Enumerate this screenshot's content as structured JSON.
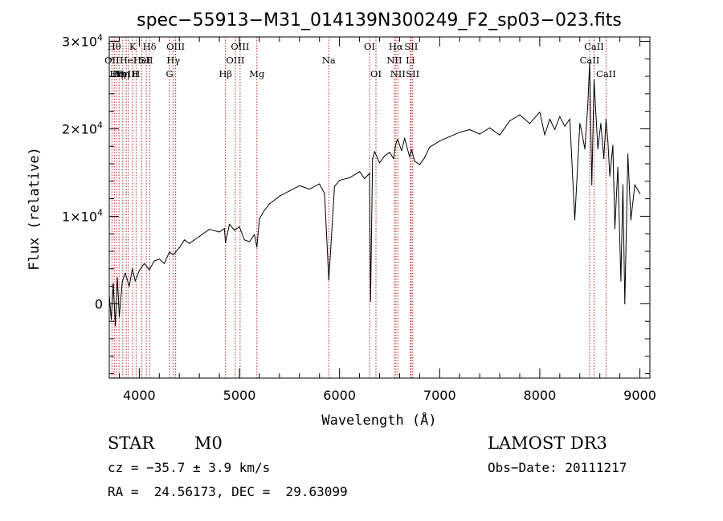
{
  "chart_data": {
    "type": "line",
    "title": "spec−55913−M31_014139N300249_F2_sp03−023.fits",
    "xlabel": "Wavelength (Å)",
    "ylabel": "Flux (relative)",
    "xlim": [
      3700,
      9100
    ],
    "ylim": [
      -8500,
      30500
    ],
    "x_ticks": [
      {
        "value": 4000,
        "label": "4000"
      },
      {
        "value": 5000,
        "label": "5000"
      },
      {
        "value": 6000,
        "label": "6000"
      },
      {
        "value": 7000,
        "label": "7000"
      },
      {
        "value": 8000,
        "label": "8000"
      },
      {
        "value": 9000,
        "label": "9000"
      }
    ],
    "y_ticks": [
      {
        "value": 0,
        "mantissa": "0",
        "exponent": ""
      },
      {
        "value": 10000,
        "mantissa": "1×10",
        "exponent": "4"
      },
      {
        "value": 20000,
        "mantissa": "2×10",
        "exponent": "4"
      },
      {
        "value": 30000,
        "mantissa": "3×10",
        "exponent": "4"
      }
    ],
    "series": [
      {
        "name": "spectrum",
        "x": [
          3700,
          3720,
          3740,
          3760,
          3780,
          3800,
          3830,
          3860,
          3900,
          3930,
          3960,
          4000,
          4050,
          4100,
          4150,
          4200,
          4250,
          4300,
          4340,
          4400,
          4450,
          4500,
          4600,
          4700,
          4800,
          4850,
          4861,
          4900,
          4950,
          5000,
          5050,
          5100,
          5150,
          5175,
          5200,
          5250,
          5300,
          5400,
          5500,
          5600,
          5700,
          5800,
          5850,
          5893,
          5950,
          6000,
          6100,
          6200,
          6250,
          6300,
          6310,
          6330,
          6350,
          6400,
          6450,
          6500,
          6540,
          6563,
          6580,
          6620,
          6650,
          6700,
          6720,
          6750,
          6800,
          6850,
          6900,
          7000,
          7100,
          7200,
          7300,
          7400,
          7500,
          7600,
          7700,
          7800,
          7900,
          8000,
          8050,
          8100,
          8150,
          8200,
          8250,
          8300,
          8350,
          8400,
          8420,
          8450,
          8480,
          8498,
          8520,
          8542,
          8580,
          8610,
          8640,
          8662,
          8680,
          8700,
          8730,
          8750,
          8780,
          8810,
          8830,
          8850,
          8880,
          8910,
          8950,
          9000
        ],
        "y": [
          1000,
          -1800,
          2300,
          -2500,
          3000,
          -1500,
          2500,
          3500,
          2000,
          4000,
          2600,
          3800,
          4600,
          3900,
          4900,
          5100,
          4600,
          5900,
          5600,
          6400,
          7300,
          6900,
          7700,
          8500,
          8200,
          8600,
          7000,
          9100,
          8400,
          8800,
          7300,
          7100,
          7900,
          6500,
          9700,
          10700,
          11400,
          12300,
          12900,
          13500,
          13100,
          13700,
          12600,
          2700,
          13400,
          14100,
          14400,
          15100,
          14300,
          14900,
          300,
          16600,
          17400,
          16100,
          16900,
          17300,
          16600,
          18300,
          18800,
          17500,
          18900,
          16800,
          17600,
          16300,
          15900,
          16700,
          17900,
          18600,
          19100,
          19600,
          19900,
          19400,
          20100,
          19300,
          20900,
          21600,
          20600,
          21900,
          19300,
          21100,
          19900,
          21400,
          20300,
          21100,
          9600,
          20600,
          19600,
          17700,
          22700,
          27600,
          13600,
          25600,
          17700,
          20600,
          16600,
          21100,
          18600,
          14600,
          18100,
          8600,
          15600,
          2600,
          13600,
          0,
          17100,
          9600,
          13600,
          12600
        ]
      }
    ],
    "lines": [
      {
        "x": 3727,
        "label": "OII",
        "row": 2
      },
      {
        "x": 3750,
        "label": "Hθ",
        "row": 1
      },
      {
        "x": 3771,
        "label": "Hη",
        "row": 3
      },
      {
        "x": 3798,
        "label": "Hη",
        "row": 3
      },
      {
        "x": 3835,
        "label": "Hη",
        "row": 3
      },
      {
        "x": 3869,
        "label": "NeIII",
        "row": 3
      },
      {
        "x": 3889,
        "label": "HeI",
        "row": 2
      },
      {
        "x": 3934,
        "label": "K",
        "row": 1
      },
      {
        "x": 3968,
        "label": "H",
        "row": 3
      },
      {
        "x": 4026,
        "label": "HeI",
        "row": 2
      },
      {
        "x": 4070,
        "label": "SII",
        "row": 2
      },
      {
        "x": 4102,
        "label": "Hδ",
        "row": 1
      },
      {
        "x": 4303,
        "label": "G",
        "row": 3
      },
      {
        "x": 4340,
        "label": "Hγ",
        "row": 2
      },
      {
        "x": 4363,
        "label": "OIII",
        "row": 1
      },
      {
        "x": 4861,
        "label": "Hβ",
        "row": 3
      },
      {
        "x": 4959,
        "label": "OIII",
        "row": 2
      },
      {
        "x": 5007,
        "label": "OIII",
        "row": 1
      },
      {
        "x": 5175,
        "label": "Mg",
        "row": 3
      },
      {
        "x": 5893,
        "label": "Na",
        "row": 2
      },
      {
        "x": 6300,
        "label": "OI",
        "row": 1
      },
      {
        "x": 6364,
        "label": "OI",
        "row": 3
      },
      {
        "x": 6548,
        "label": "NII",
        "row": 2
      },
      {
        "x": 6563,
        "label": "Hα",
        "row": 1
      },
      {
        "x": 6583,
        "label": "NII",
        "row": 3
      },
      {
        "x": 6707,
        "label": "Li",
        "row": 2
      },
      {
        "x": 6716,
        "label": "SII",
        "row": 1
      },
      {
        "x": 6731,
        "label": "SII",
        "row": 3
      },
      {
        "x": 8498,
        "label": "CaII",
        "row": 2
      },
      {
        "x": 8542,
        "label": "CaII",
        "row": 1
      },
      {
        "x": 8662,
        "label": "CaII",
        "row": 3
      }
    ],
    "line_color": "#b22222",
    "data_color": "#000000"
  },
  "footer": {
    "class_label": "STAR",
    "subclass_label": "M0",
    "survey": "LAMOST DR3",
    "cz": "cz = −35.7 ± 3.9 km/s",
    "obs_date": "Obs−Date: 20111217",
    "coords": "RA =  24.56173, DEC =  29.63099"
  }
}
